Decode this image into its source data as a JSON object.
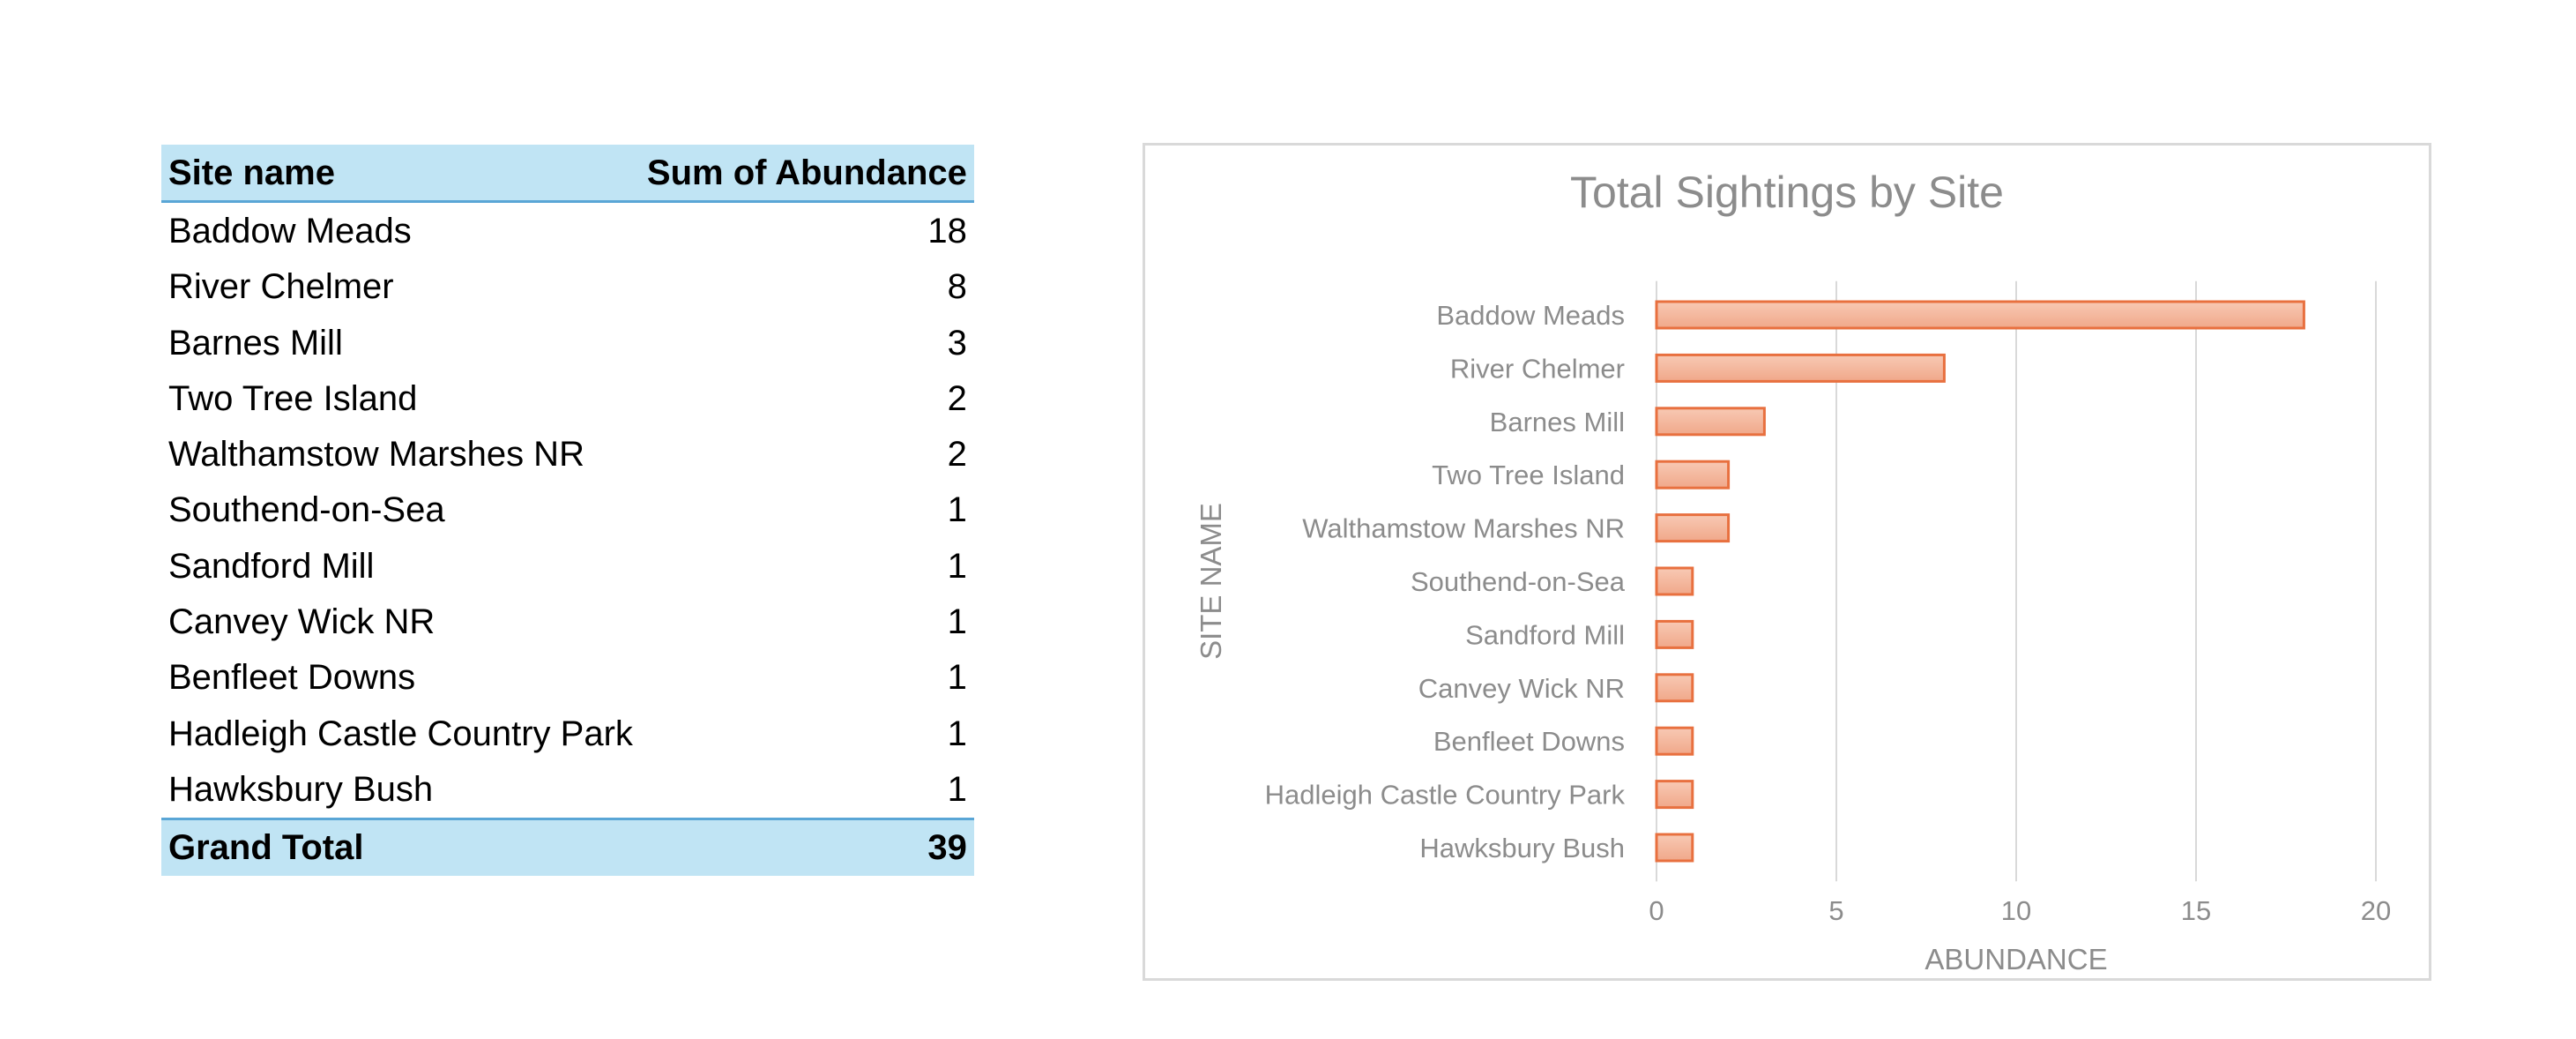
{
  "pivot_table": {
    "headers": {
      "site": "Site name",
      "sum": "Sum of Abundance"
    },
    "rows": [
      {
        "site": "Baddow Meads",
        "value": "18"
      },
      {
        "site": "River Chelmer",
        "value": "8"
      },
      {
        "site": "Barnes Mill",
        "value": "3"
      },
      {
        "site": "Two Tree Island",
        "value": "2"
      },
      {
        "site": "Walthamstow Marshes NR",
        "value": "2"
      },
      {
        "site": "Southend-on-Sea",
        "value": "1"
      },
      {
        "site": "Sandford Mill",
        "value": "1"
      },
      {
        "site": "Canvey Wick NR",
        "value": "1"
      },
      {
        "site": "Benfleet Downs",
        "value": "1"
      },
      {
        "site": "Hadleigh Castle Country Park",
        "value": "1"
      },
      {
        "site": "Hawksbury Bush",
        "value": "1"
      }
    ],
    "total": {
      "label": "Grand Total",
      "value": "39"
    },
    "colors": {
      "header_fill": "#c0e4f4",
      "header_rule": "#5aa6d6"
    }
  },
  "chart_data": {
    "type": "bar",
    "orientation": "horizontal",
    "title": "Total Sightings by Site",
    "xlabel": "ABUNDANCE",
    "ylabel": "SITE NAME",
    "categories": [
      "Baddow Meads",
      "River Chelmer",
      "Barnes Mill",
      "Two Tree Island",
      "Walthamstow Marshes NR",
      "Southend-on-Sea",
      "Sandford Mill",
      "Canvey Wick NR",
      "Benfleet Downs",
      "Hadleigh Castle Country Park",
      "Hawksbury Bush"
    ],
    "values": [
      18,
      8,
      3,
      2,
      2,
      1,
      1,
      1,
      1,
      1,
      1
    ],
    "xlim": [
      0,
      20
    ],
    "xticks": [
      0,
      5,
      10,
      15,
      20
    ],
    "grid": "vertical",
    "legend": "none",
    "colors": {
      "bar_fill_light": "#f8c9b4",
      "bar_fill_dark": "#f0a88a",
      "bar_stroke": "#e8703f",
      "grid": "#d9d9d9",
      "text": "#8c8c8c"
    }
  }
}
